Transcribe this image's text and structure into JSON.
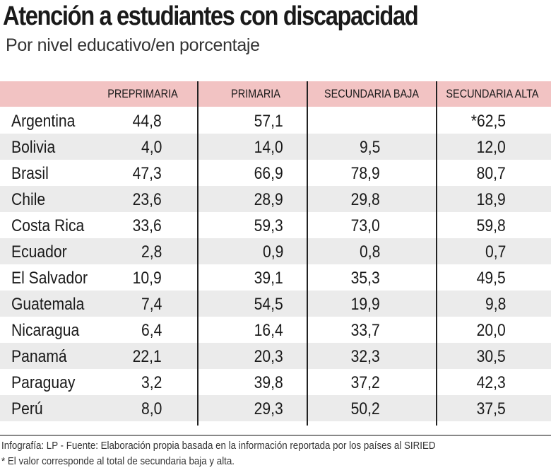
{
  "title": "Atención a estudiantes con discapacidad",
  "subtitle": "Por nivel educativo/en porcentaje",
  "chart_data": {
    "type": "table",
    "columns": [
      "PREPRIMARIA",
      "PRIMARIA",
      "SECUNDARIA BAJA",
      "SECUNDARIA ALTA"
    ],
    "rows": [
      {
        "country": "Argentina",
        "values": [
          "44,8",
          "57,1",
          "",
          "*62,5"
        ]
      },
      {
        "country": "Bolivia",
        "values": [
          "4,0",
          "14,0",
          "9,5",
          "12,0"
        ]
      },
      {
        "country": "Brasil",
        "values": [
          "47,3",
          "66,9",
          "78,9",
          "80,7"
        ]
      },
      {
        "country": "Chile",
        "values": [
          "23,6",
          "28,9",
          "29,8",
          "18,9"
        ]
      },
      {
        "country": "Costa Rica",
        "values": [
          "33,6",
          "59,3",
          "73,0",
          "59,8"
        ]
      },
      {
        "country": "Ecuador",
        "values": [
          "2,8",
          "0,9",
          "0,8",
          "0,7"
        ]
      },
      {
        "country": "El Salvador",
        "values": [
          "10,9",
          "39,1",
          "35,3",
          "49,5"
        ]
      },
      {
        "country": "Guatemala",
        "values": [
          "7,4",
          "54,5",
          "19,9",
          "9,8"
        ]
      },
      {
        "country": "Nicaragua",
        "values": [
          "6,4",
          "16,4",
          "33,7",
          "20,0"
        ]
      },
      {
        "country": "Panamá",
        "values": [
          "22,1",
          "20,3",
          "32,3",
          "30,5"
        ]
      },
      {
        "country": "Paraguay",
        "values": [
          "3,2",
          "39,8",
          "37,2",
          "42,3"
        ]
      },
      {
        "country": "Perú",
        "values": [
          "8,0",
          "29,3",
          "50,2",
          "37,5"
        ]
      }
    ],
    "header_color": "#f2c3c3",
    "stripe_color": "#ebebeb"
  },
  "footer": {
    "source": "Infografía: LP - Fuente: Elaboración propia basada en la información reportada por los países al SIRIED",
    "note": "* El valor corresponde al total de secundaria baja y alta."
  }
}
